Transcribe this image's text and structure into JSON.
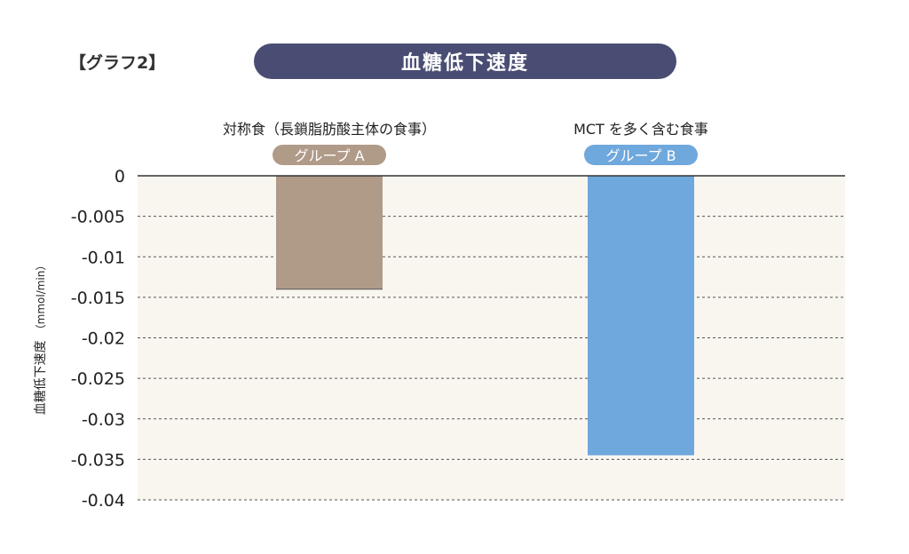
{
  "header": {
    "graph_tag": "【グラフ2】",
    "title": "血糖低下速度"
  },
  "colors": {
    "title_bg": "#4a4d73",
    "plot_bg": "#f9f6f0",
    "group_a": "#b09a88",
    "group_b": "#6fa8dc"
  },
  "chart_data": {
    "type": "bar",
    "title": "血糖低下速度",
    "ylabel": "血糖低下速度（mmol/min）",
    "ylabel_main": "血糖低下速度",
    "ylabel_unit": "（mmol/min）",
    "ylim": [
      -0.04,
      0
    ],
    "yticks": [
      {
        "value": 0,
        "label": "0"
      },
      {
        "value": -0.005,
        "label": "-0.005"
      },
      {
        "value": -0.01,
        "label": "-0.01"
      },
      {
        "value": -0.015,
        "label": "-0.015"
      },
      {
        "value": -0.02,
        "label": "-0.02"
      },
      {
        "value": -0.025,
        "label": "-0.025"
      },
      {
        "value": -0.03,
        "label": "-0.03"
      },
      {
        "value": -0.035,
        "label": "-0.035"
      },
      {
        "value": -0.04,
        "label": "-0.04"
      }
    ],
    "grid": true,
    "categories": [
      {
        "description": "対称食（長鎖脂肪酸主体の食事）",
        "group": "グループ A",
        "value": -0.014
      },
      {
        "description": "MCT を多く含む食事",
        "group": "グループ B",
        "value": -0.0345
      }
    ]
  }
}
